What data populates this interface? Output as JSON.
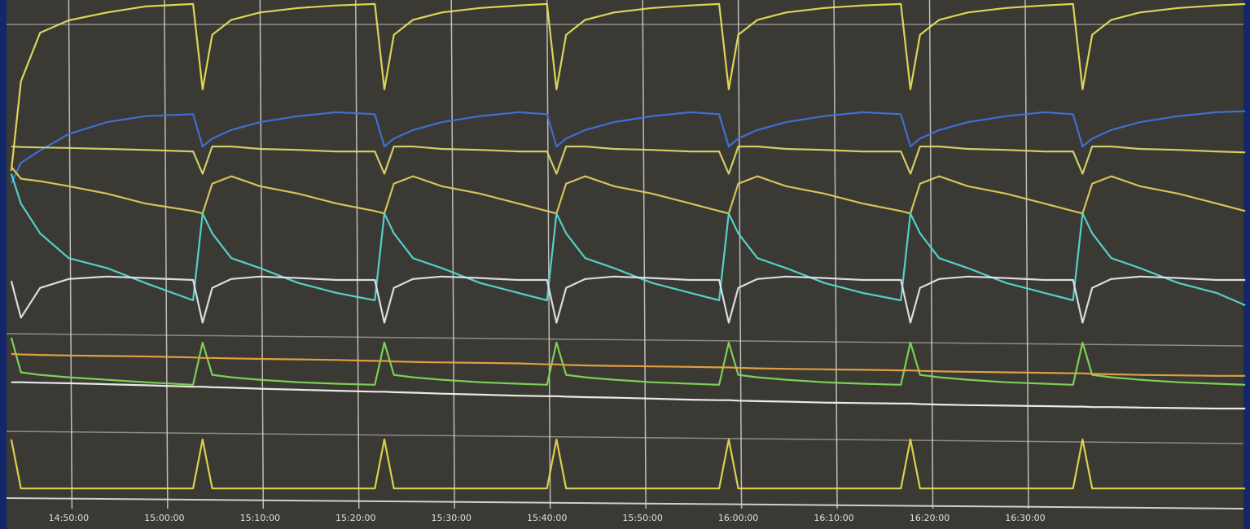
{
  "chart_data": {
    "type": "line",
    "x": [
      "14:44:00",
      "14:45:00",
      "14:47:00",
      "14:50:00",
      "14:54:00",
      "14:58:00",
      "15:03:00",
      "15:04:00",
      "15:05:00",
      "15:07:00",
      "15:10:00",
      "15:14:00",
      "15:18:00",
      "15:22:00",
      "15:23:00",
      "15:24:00",
      "15:26:00",
      "15:29:00",
      "15:33:00",
      "15:37:00",
      "15:40:00",
      "15:41:00",
      "15:42:00",
      "15:44:00",
      "15:47:00",
      "15:51:00",
      "15:55:00",
      "15:58:00",
      "15:59:00",
      "16:00:00",
      "16:02:00",
      "16:05:00",
      "16:09:00",
      "16:13:00",
      "16:17:00",
      "16:18:00",
      "16:19:00",
      "16:21:00",
      "16:24:00",
      "16:28:00",
      "16:32:00",
      "16:35:00",
      "16:36:00",
      "16:37:00",
      "16:39:00",
      "16:42:00",
      "16:46:00",
      "16:50:00",
      "16:53:00"
    ],
    "xlim": [
      "14:43:40",
      "16:53:30"
    ],
    "xticks": [
      "14:50:00",
      "15:00:00",
      "15:10:00",
      "15:20:00",
      "15:30:00",
      "15:40:00",
      "15:50:00",
      "16:00:00",
      "16:10:00",
      "16:20:00",
      "16:30:00"
    ],
    "ylim": [
      0,
      100
    ],
    "grid": true,
    "series": [
      {
        "color": "#e6dc5a",
        "values": [
          65.6,
          83.6,
          93.4,
          95.9,
          97.5,
          98.7,
          99.2,
          82,
          93,
          96,
          97.5,
          98.4,
          98.9,
          99.2,
          82,
          93,
          96,
          97.5,
          98.4,
          98.9,
          99.2,
          82,
          93,
          96,
          97.5,
          98.4,
          98.9,
          99.2,
          82,
          93,
          96,
          97.5,
          98.4,
          98.9,
          99.2,
          82,
          93,
          96,
          97.5,
          98.4,
          98.9,
          99.2,
          82,
          93,
          96,
          97.5,
          98.4,
          98.9,
          99.2
        ]
      },
      {
        "color": "#3f72dc",
        "values": [
          63.1,
          67.2,
          69.7,
          73,
          75.4,
          76.6,
          77,
          70.5,
          72.1,
          73.8,
          75.4,
          76.6,
          77.4,
          77,
          70.5,
          72.1,
          73.8,
          75.4,
          76.6,
          77.4,
          77,
          70.5,
          72.1,
          73.8,
          75.4,
          76.6,
          77.4,
          77,
          70.5,
          72.1,
          73.8,
          75.4,
          76.6,
          77.4,
          77,
          70.5,
          72.1,
          73.8,
          75.4,
          76.6,
          77.4,
          77,
          70.5,
          72.1,
          73.8,
          75.4,
          76.6,
          77.4,
          77.6
        ]
      },
      {
        "color": "#dcd468",
        "values": [
          70.5,
          70.4,
          70.3,
          70.2,
          70,
          69.8,
          69.5,
          65,
          70.5,
          70.5,
          70,
          69.8,
          69.5,
          69.5,
          65,
          70.5,
          70.5,
          70,
          69.8,
          69.5,
          69.5,
          65,
          70.5,
          70.5,
          70,
          69.8,
          69.5,
          69.5,
          65,
          70.5,
          70.5,
          70,
          69.8,
          69.5,
          69.5,
          65,
          70.5,
          70.5,
          70,
          69.8,
          69.5,
          69.5,
          65,
          70.5,
          70.5,
          70,
          69.8,
          69.5,
          69.3
        ]
      },
      {
        "color": "#e2c85a",
        "values": [
          66.4,
          64,
          63.5,
          62.5,
          61,
          59,
          57.5,
          57,
          63,
          64.5,
          62.5,
          61,
          59,
          57.5,
          57,
          63,
          64.5,
          62.5,
          61,
          59,
          57.5,
          57,
          63,
          64.5,
          62.5,
          61,
          59,
          57.5,
          57,
          63,
          64.5,
          62.5,
          61,
          59,
          57.5,
          57,
          63,
          64.5,
          62.5,
          61,
          59,
          57.5,
          57,
          63,
          64.5,
          62.5,
          61,
          59,
          57.5
        ]
      },
      {
        "color": "#56d8d0",
        "values": [
          65,
          59,
          53,
          48,
          46,
          43,
          39.5,
          57,
          53,
          48,
          46,
          43,
          41,
          39.5,
          57,
          53,
          48,
          46,
          43,
          41,
          39.5,
          57,
          53,
          48,
          46,
          43,
          41,
          39.5,
          57,
          53,
          48,
          46,
          43,
          41,
          39.5,
          57,
          53,
          48,
          46,
          43,
          41,
          39.5,
          57,
          53,
          48,
          46,
          43,
          41,
          38.5
        ]
      },
      {
        "color": "#e4e4ea",
        "values": [
          43.4,
          36,
          42,
          43.8,
          44.3,
          44,
          43.6,
          35,
          42,
          43.8,
          44.3,
          44,
          43.6,
          43.6,
          35,
          42,
          43.8,
          44.3,
          44,
          43.6,
          43.6,
          35,
          42,
          43.8,
          44.3,
          44,
          43.6,
          43.6,
          35,
          42,
          43.8,
          44.3,
          44,
          43.6,
          43.6,
          35,
          42,
          43.8,
          44.3,
          44,
          43.6,
          43.6,
          35,
          42,
          43.8,
          44.3,
          44,
          43.6,
          43.6
        ]
      },
      {
        "color": "#7fd85a",
        "values": [
          32,
          25,
          24.5,
          24,
          23.5,
          23,
          22.5,
          31,
          24.5,
          24,
          23.5,
          23,
          22.7,
          22.5,
          31,
          24.5,
          24,
          23.5,
          23,
          22.7,
          22.5,
          31,
          24.5,
          24,
          23.5,
          23,
          22.7,
          22.5,
          31,
          24.5,
          24,
          23.5,
          23,
          22.7,
          22.5,
          31,
          24.5,
          24,
          23.5,
          23,
          22.7,
          22.5,
          31,
          24.5,
          24,
          23.5,
          23,
          22.7,
          22.5
        ]
      },
      {
        "color": "#e8a442",
        "values": [
          28.7,
          28.6,
          28.5,
          28.4,
          28.3,
          28.2,
          28,
          27.9,
          27.9,
          27.8,
          27.7,
          27.6,
          27.5,
          27.3,
          27.3,
          27.2,
          27.1,
          27,
          26.9,
          26.8,
          26.6,
          26.6,
          26.5,
          26.4,
          26.3,
          26.2,
          26.1,
          26,
          26,
          25.9,
          25.8,
          25.7,
          25.6,
          25.5,
          25.4,
          25.4,
          25.3,
          25.2,
          25.1,
          25,
          24.9,
          24.8,
          24.8,
          24.7,
          24.6,
          24.5,
          24.4,
          24.3,
          24.3
        ]
      },
      {
        "color": "#f2f2f2",
        "values": [
          23,
          23,
          22.9,
          22.8,
          22.6,
          22.4,
          22.1,
          22.1,
          22,
          21.9,
          21.7,
          21.5,
          21.3,
          21.1,
          21.1,
          21,
          20.9,
          20.7,
          20.5,
          20.3,
          20.2,
          20.2,
          20.1,
          20,
          19.9,
          19.7,
          19.5,
          19.4,
          19.4,
          19.3,
          19.2,
          19.1,
          18.9,
          18.8,
          18.7,
          18.7,
          18.6,
          18.5,
          18.4,
          18.3,
          18.2,
          18.1,
          18.1,
          18,
          18,
          17.9,
          17.8,
          17.7,
          17.7
        ]
      },
      {
        "color": "#e6d84e",
        "values": [
          11.5,
          1.6,
          1.6,
          1.6,
          1.6,
          1.6,
          1.6,
          11.5,
          1.6,
          1.6,
          1.6,
          1.6,
          1.6,
          1.6,
          11.5,
          1.6,
          1.6,
          1.6,
          1.6,
          1.6,
          1.6,
          11.5,
          1.6,
          1.6,
          1.6,
          1.6,
          1.6,
          1.6,
          11.5,
          1.6,
          1.6,
          1.6,
          1.6,
          1.6,
          1.6,
          11.5,
          1.6,
          1.6,
          1.6,
          1.6,
          1.6,
          1.6,
          11.5,
          1.6,
          1.6,
          1.6,
          1.6,
          1.6,
          1.6
        ]
      }
    ]
  }
}
